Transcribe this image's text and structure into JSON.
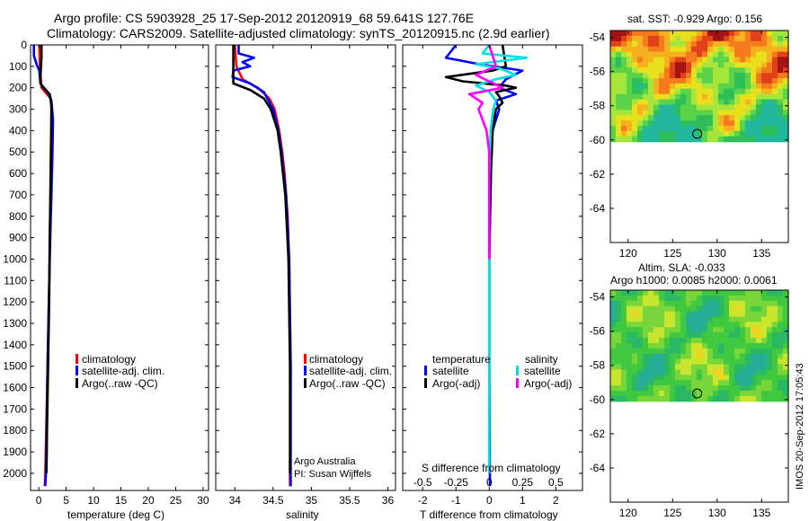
{
  "title": {
    "line1": "Argo profile: CS 5903928_25 17-Sep-2012 20120919_68 59.641S 127.76E",
    "line2": "Climatology: CARS2009. Satellite-adjusted climatology: synTS_20120915.nc (2.9d earlier)"
  },
  "colors": {
    "climatology": "#ff0000",
    "satellite": "#0000ff",
    "argo": "#000000",
    "sal_satellite": "#00e0e0",
    "sal_argo": "#ff00ff"
  },
  "legend": {
    "climatology": "climatology",
    "satellite_adj": "satellite-adj. clim.",
    "argo_raw": "Argo(..raw -QC)",
    "temperature": "temperature",
    "salinity": "salinity",
    "satellite": "satellite",
    "argo_adj": "Argo(-adj)"
  },
  "credit": {
    "line1": "Argo Australia",
    "line2": "PI: Susan Wijffels"
  },
  "timestamp": "IMOS 20-Sep-2012 17:05:43",
  "chart_data": [
    {
      "type": "line",
      "name": "temperature profile",
      "xlabel": "temperature (deg C)",
      "xlim": [
        -1.5,
        31
      ],
      "ylim": [
        2080,
        0
      ],
      "x_ticks": [
        "0",
        "5",
        "10",
        "15",
        "20",
        "25",
        "30"
      ],
      "y_ticks": [
        "0",
        "100",
        "200",
        "300",
        "400",
        "500",
        "600",
        "700",
        "800",
        "900",
        "1000",
        "1100",
        "1200",
        "1300",
        "1400",
        "1500",
        "1600",
        "1700",
        "1800",
        "1900",
        "2000"
      ],
      "series": [
        {
          "name": "climatology",
          "color": "#ff0000",
          "depth": [
            0,
            100,
            200,
            250,
            300,
            500,
            1000,
            1500,
            2000,
            2060
          ],
          "values": [
            0.1,
            0.2,
            0.5,
            2.2,
            2.3,
            2.2,
            2.0,
            1.6,
            1.2,
            1.1
          ]
        },
        {
          "name": "satellite-adj. clim.",
          "color": "#0000ff",
          "depth": [
            0,
            50,
            90,
            120,
            180,
            220,
            260,
            350,
            500,
            700,
            1000,
            1500,
            2000,
            2060
          ],
          "values": [
            -0.9,
            -0.9,
            -0.4,
            0.1,
            0.3,
            1.6,
            2.3,
            2.6,
            2.5,
            2.3,
            2.0,
            1.6,
            1.3,
            1.2
          ]
        },
        {
          "name": "Argo(..raw -QC)",
          "color": "#000000",
          "depth": [
            0,
            60,
            100,
            150,
            180,
            200,
            230,
            280,
            400,
            600,
            900,
            1200,
            1500,
            1800,
            2000
          ],
          "values": [
            0.5,
            0.5,
            0.4,
            0.3,
            0.3,
            0.8,
            2.0,
            2.3,
            2.3,
            2.2,
            2.0,
            1.9,
            1.7,
            1.5,
            1.4
          ]
        }
      ]
    },
    {
      "type": "line",
      "name": "salinity profile",
      "xlabel": "salinity",
      "xlim": [
        33.75,
        36.1
      ],
      "ylim": [
        2080,
        0
      ],
      "x_ticks": [
        "34",
        "34.5",
        "35",
        "35.5",
        "36"
      ],
      "series": [
        {
          "name": "climatology",
          "color": "#ff0000",
          "depth": [
            0,
            100,
            160,
            200,
            250,
            300,
            400,
            500,
            600,
            800,
            1000,
            1500,
            2000,
            2060
          ],
          "values": [
            34.0,
            34.02,
            34.1,
            34.3,
            34.45,
            34.52,
            34.58,
            34.62,
            34.65,
            34.69,
            34.71,
            34.73,
            34.72,
            34.72
          ]
        },
        {
          "name": "satellite-adj. clim.",
          "color": "#0000ff",
          "depth": [
            0,
            40,
            60,
            80,
            100,
            120,
            150,
            180,
            220,
            300,
            400,
            500,
            700,
            1000,
            1500,
            2000,
            2060
          ],
          "values": [
            34.05,
            34.05,
            34.25,
            34.1,
            34.2,
            33.98,
            33.97,
            34.2,
            34.38,
            34.5,
            34.57,
            34.61,
            34.67,
            34.71,
            34.73,
            34.73,
            34.73
          ]
        },
        {
          "name": "Argo(..raw -QC)",
          "color": "#000000",
          "depth": [
            0,
            100,
            150,
            180,
            210,
            250,
            300,
            400,
            500,
            700,
            1000,
            1500,
            2000
          ],
          "values": [
            33.98,
            33.98,
            33.98,
            33.98,
            34.2,
            34.38,
            34.47,
            34.56,
            34.6,
            34.66,
            34.7,
            34.72,
            34.72
          ]
        }
      ]
    },
    {
      "type": "line",
      "name": "difference from climatology",
      "xlabel": "T difference from climatology",
      "x2label": "S difference from climatology",
      "xlim": [
        -2.6,
        2.8
      ],
      "x2lim": [
        -0.65,
        0.7
      ],
      "ylim": [
        2080,
        0
      ],
      "x_ticks": [
        "-2",
        "-1",
        "0",
        "1",
        "2"
      ],
      "x2_ticks": [
        "-0.5",
        "-0.25",
        "0",
        "0.25",
        "0.5"
      ],
      "series": [
        {
          "name": "temperature satellite",
          "axis": "T",
          "color": "#0000ff",
          "depth": [
            0,
            40,
            60,
            90,
            120,
            160,
            200,
            230,
            260,
            300,
            400,
            600,
            1000,
            1500,
            2000,
            2060
          ],
          "values": [
            -1.0,
            -1.2,
            -1.3,
            -0.3,
            1.0,
            0.5,
            0.3,
            0.8,
            0.2,
            0.3,
            0.1,
            0.05,
            0.0,
            0.0,
            0.02,
            0.02
          ]
        },
        {
          "name": "temperature Argo(-adj)",
          "axis": "T",
          "color": "#000000",
          "depth": [
            0,
            100,
            120,
            150,
            170,
            190,
            200,
            220,
            240,
            270,
            300,
            400,
            600,
            1000,
            1500,
            2000
          ],
          "values": [
            0.4,
            0.5,
            0.1,
            -1.3,
            -0.8,
            0.5,
            0.8,
            0.2,
            0.3,
            0.4,
            0.2,
            0.1,
            0.05,
            0.0,
            0.0,
            0.0
          ]
        },
        {
          "name": "salinity satellite",
          "axis": "S",
          "color": "#00e0e0",
          "depth": [
            0,
            40,
            60,
            90,
            110,
            140,
            160,
            190,
            220,
            260,
            300,
            400,
            600,
            1000,
            1500,
            2000
          ],
          "values": [
            0.0,
            -0.05,
            0.28,
            -0.1,
            0.08,
            0.2,
            0.05,
            -0.1,
            0.0,
            0.05,
            0.03,
            0.01,
            0.0,
            0.0,
            0.0,
            0.0
          ]
        },
        {
          "name": "salinity Argo(-adj)",
          "axis": "S",
          "color": "#ff00ff",
          "depth": [
            0,
            100,
            140,
            170,
            200,
            230,
            270,
            300,
            350,
            400,
            500,
            600,
            800,
            1000
          ],
          "values": [
            0.0,
            0.05,
            -0.1,
            0.0,
            0.1,
            -0.15,
            -0.05,
            -0.08,
            -0.05,
            -0.02,
            0.0,
            0.0,
            0.0,
            0.0
          ]
        }
      ]
    },
    {
      "type": "heatmap",
      "name": "satellite SST map",
      "title": "sat. SST: -0.929 Argo: 0.156",
      "xlim": [
        118,
        138
      ],
      "ylim": [
        -66,
        -53.6
      ],
      "x_ticks": [
        "120",
        "125",
        "130",
        "135"
      ],
      "y_ticks": [
        "-54",
        "-56",
        "-58",
        "-60",
        "-62",
        "-64"
      ],
      "data_extent_lat": [
        -60.1,
        -53.6
      ],
      "argo_position": {
        "lon": 127.76,
        "lat": -59.641
      }
    },
    {
      "type": "heatmap",
      "name": "altimetry SLA map",
      "title": "Altim. SLA: -0.033",
      "subtitle": "Argo h1000: 0.0085 h2000: 0.0061",
      "xlim": [
        118,
        138
      ],
      "ylim": [
        -66,
        -53.6
      ],
      "x_ticks": [
        "120",
        "125",
        "130",
        "135"
      ],
      "y_ticks": [
        "-54",
        "-56",
        "-58",
        "-60",
        "-62",
        "-64"
      ],
      "data_extent_lat": [
        -60.1,
        -53.6
      ],
      "argo_position": {
        "lon": 127.76,
        "lat": -59.641
      }
    }
  ]
}
